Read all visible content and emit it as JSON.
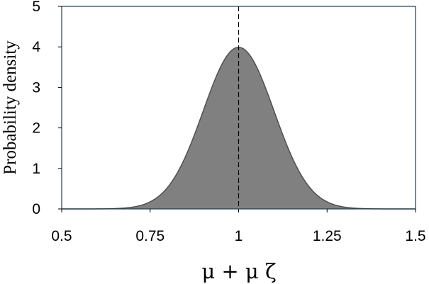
{
  "chart_data": {
    "type": "area",
    "title": "",
    "xlabel": "μ + μ ζ",
    "ylabel": "Probability density",
    "xlim": [
      0.5,
      1.5
    ],
    "ylim": [
      0,
      5
    ],
    "xticks": [
      "0.5",
      "0.75",
      "1",
      "1.25",
      "1.5"
    ],
    "yticks": [
      "0",
      "1",
      "2",
      "3",
      "4",
      "5"
    ],
    "grid": false,
    "legend": "none",
    "series": [
      {
        "distribution": "normal",
        "mean": 1.0,
        "std": 0.1,
        "peak": 3.99,
        "x": [
          0.5,
          0.6,
          0.65,
          0.7,
          0.75,
          0.8,
          0.85,
          0.9,
          0.95,
          1.0,
          1.05,
          1.1,
          1.15,
          1.2,
          1.25,
          1.3,
          1.35,
          1.4,
          1.5
        ],
        "y": [
          0.0,
          0.0,
          0.01,
          0.04,
          0.18,
          0.54,
          1.3,
          2.42,
          3.52,
          3.99,
          3.52,
          2.42,
          1.3,
          0.54,
          0.18,
          0.04,
          0.01,
          0.0,
          0.0
        ],
        "fill_color": "#808080",
        "line_color": "#505050"
      }
    ],
    "annotations": [
      {
        "type": "vertical-dashed-line",
        "x": 1.0,
        "color": "#000000"
      }
    ],
    "frame_color": "#1f3b4d"
  }
}
